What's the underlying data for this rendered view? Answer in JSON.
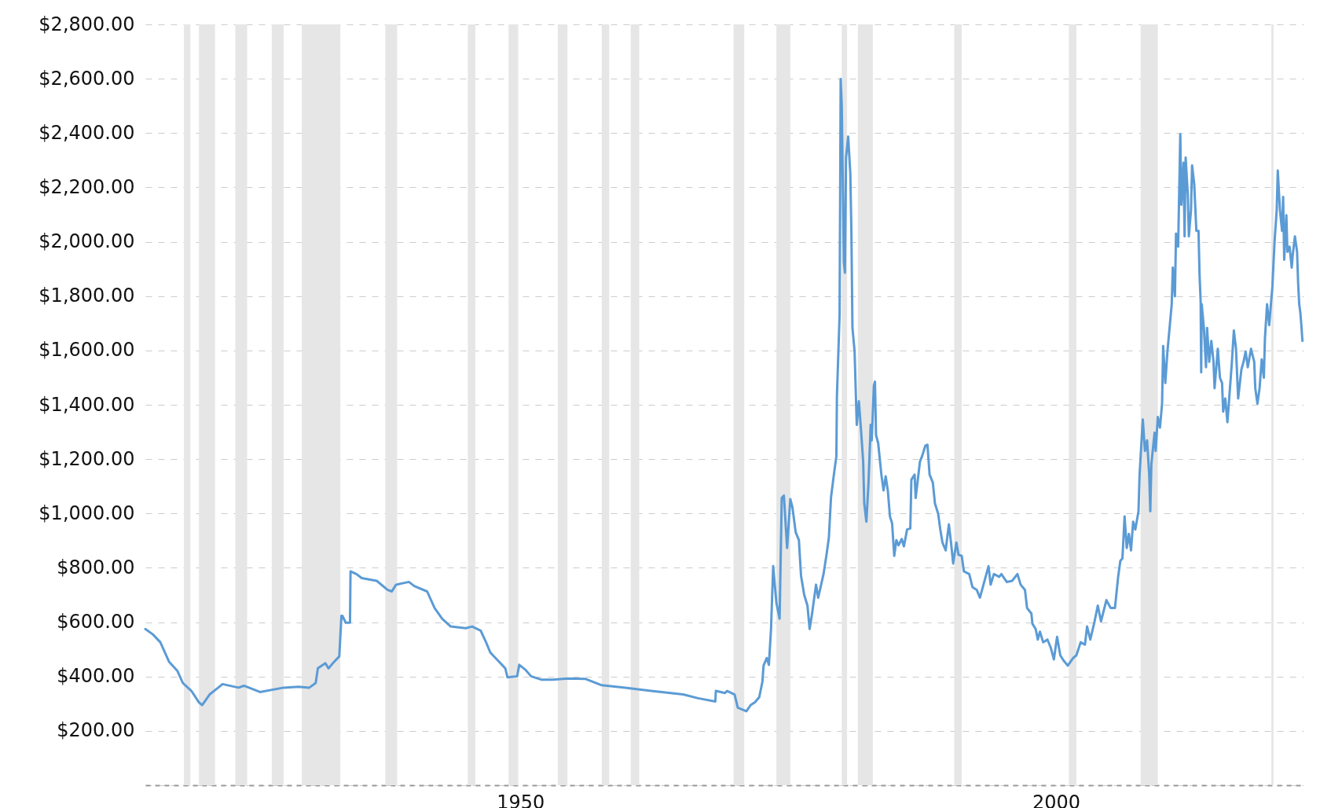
{
  "chart_data": {
    "type": "line",
    "x": [
      1915.0,
      1915.7,
      1916.4,
      1917.2,
      1918.0,
      1918.5,
      1919.3,
      1920.0,
      1920.3,
      1921.0,
      1921.8,
      1922.2,
      1923.7,
      1924.2,
      1925.7,
      1927.9,
      1929.3,
      1930.3,
      1930.9,
      1931.1,
      1931.8,
      1932.1,
      1932.5,
      1933.1,
      1933.3,
      1933.4,
      1933.7,
      1934.1,
      1934.15,
      1934.7,
      1935.2,
      1936.6,
      1937.6,
      1938.0,
      1938.4,
      1939.6,
      1940.1,
      1941.3,
      1942.0,
      1942.7,
      1943.5,
      1944.9,
      1945.5,
      1946.3,
      1946.8,
      1947.2,
      1947.9,
      1948.6,
      1948.8,
      1949.7,
      1949.9,
      1950.5,
      1951.0,
      1952.0,
      1953.0,
      1954.4,
      1956.1,
      1957.6,
      1959.8,
      1962.2,
      1965.2,
      1966.6,
      1968.2,
      1968.25,
      1969.1,
      1969.3,
      1970.0,
      1970.3,
      1971.1,
      1971.5,
      1971.9,
      1972.3,
      1972.6,
      1972.7,
      1973.0,
      1973.2,
      1973.4,
      1973.6,
      1973.9,
      1974.2,
      1974.4,
      1974.6,
      1974.9,
      1975.2,
      1975.4,
      1975.7,
      1976.0,
      1976.2,
      1976.5,
      1976.8,
      1977.0,
      1977.2,
      1977.6,
      1977.8,
      1978.3,
      1978.6,
      1978.8,
      1979.0,
      1979.3,
      1979.5,
      1979.55,
      1979.8,
      1979.9,
      1980.0,
      1980.2,
      1980.3,
      1980.4,
      1980.6,
      1980.8,
      1980.9,
      1981.0,
      1981.2,
      1981.4,
      1981.6,
      1981.8,
      1982.0,
      1982.1,
      1982.3,
      1982.5,
      1982.7,
      1982.8,
      1983.0,
      1983.1,
      1983.2,
      1983.4,
      1983.7,
      1983.9,
      1984.1,
      1984.3,
      1984.5,
      1984.7,
      1984.9,
      1985.1,
      1985.3,
      1985.6,
      1985.8,
      1986.1,
      1986.4,
      1986.5,
      1986.8,
      1986.9,
      1987.3,
      1987.5,
      1987.8,
      1988.0,
      1988.2,
      1988.5,
      1988.7,
      1989.0,
      1989.2,
      1989.4,
      1989.7,
      1990.0,
      1990.2,
      1990.4,
      1990.7,
      1990.9,
      1991.2,
      1991.4,
      1991.9,
      1992.2,
      1992.6,
      1992.9,
      1993.7,
      1993.9,
      1994.2,
      1994.7,
      1994.9,
      1995.4,
      1995.9,
      1996.4,
      1996.7,
      1997.1,
      1997.3,
      1997.7,
      1997.8,
      1998.1,
      1998.3,
      1998.5,
      1998.8,
      1999.2,
      1999.5,
      1999.8,
      2000.1,
      2000.4,
      2000.7,
      2001.1,
      2001.6,
      2001.9,
      2002.3,
      2002.7,
      2002.9,
      2003.2,
      2003.6,
      2003.9,
      2004.2,
      2004.7,
      2005.1,
      2005.5,
      2005.8,
      2006.0,
      2006.2,
      2006.4,
      2006.6,
      2006.8,
      2007.0,
      2007.2,
      2007.4,
      2007.7,
      2007.8,
      2008.1,
      2008.3,
      2008.5,
      2008.7,
      2008.8,
      2008.9,
      2009.2,
      2009.3,
      2009.5,
      2009.7,
      2009.9,
      2010.0,
      2010.2,
      2010.4,
      2010.6,
      2010.8,
      2010.9,
      2011.1,
      2011.2,
      2011.4,
      2011.6,
      2011.7,
      2011.9,
      2012.0,
      2012.1,
      2012.3,
      2012.4,
      2012.6,
      2012.7,
      2012.9,
      2013.1,
      2013.3,
      2013.4,
      2013.5,
      2013.55,
      2013.6,
      2013.8,
      2014.0,
      2014.1,
      2014.3,
      2014.5,
      2014.7,
      2014.8,
      2015.1,
      2015.3,
      2015.5,
      2015.6,
      2015.8,
      2016.0,
      2016.2,
      2016.4,
      2016.6,
      2016.8,
      2017.0,
      2017.3,
      2017.5,
      2017.7,
      2017.9,
      2018.2,
      2018.5,
      2018.6,
      2018.8,
      2019.0,
      2019.2,
      2019.4,
      2019.5,
      2019.7,
      2019.9,
      2020.2,
      2020.4,
      2020.6,
      2020.7,
      2020.9,
      2021.1,
      2021.2,
      2021.3,
      2021.5,
      2021.6,
      2021.8,
      2022.0,
      2022.1,
      2022.3,
      2022.5,
      2022.6,
      2022.7,
      2022.8,
      2022.9,
      2023.0
    ],
    "series": [
      {
        "color": "#5b9bd5",
        "values": [
          575,
          555,
          526,
          455,
          420,
          376,
          347,
          305,
          295,
          334,
          359,
          372,
          359,
          366,
          343,
          359,
          362,
          359,
          376,
          430,
          449,
          430,
          449,
          474,
          623,
          623,
          598,
          598,
          787,
          777,
          762,
          752,
          719,
          713,
          738,
          748,
          733,
          713,
          652,
          613,
          584,
          578,
          584,
          569,
          526,
          488,
          459,
          430,
          397,
          401,
          443,
          424,
          401,
          388,
          388,
          393,
          391,
          368,
          359,
          347,
          334,
          320,
          308,
          347,
          339,
          347,
          334,
          285,
          272,
          295,
          305,
          324,
          382,
          440,
          468,
          443,
          575,
          806,
          671,
          613,
          1057,
          1066,
          873,
          1053,
          1022,
          931,
          902,
          771,
          700,
          661,
          575,
          623,
          738,
          690,
          777,
          854,
          912,
          1060,
          1153,
          1211,
          1432,
          1731,
          2599,
          2503,
          1924,
          1886,
          2310,
          2387,
          2252,
          2040,
          1683,
          1596,
          1326,
          1413,
          1307,
          1191,
          1037,
          970,
          1114,
          1326,
          1269,
          1471,
          1485,
          1288,
          1259,
          1143,
          1085,
          1137,
          1085,
          989,
          964,
          844,
          902,
          883,
          906,
          879,
          941,
          945,
          1124,
          1143,
          1057,
          1191,
          1211,
          1249,
          1253,
          1143,
          1114,
          1037,
          999,
          941,
          893,
          864,
          960,
          893,
          816,
          893,
          848,
          844,
          787,
          777,
          729,
          719,
          690,
          806,
          738,
          777,
          767,
          777,
          748,
          752,
          777,
          738,
          719,
          652,
          632,
          594,
          575,
          536,
          565,
          526,
          536,
          507,
          463,
          546,
          478,
          459,
          440,
          468,
          478,
          526,
          517,
          584,
          536,
          603,
          661,
          603,
          681,
          652,
          652,
          767,
          825,
          835,
          989,
          873,
          925,
          864,
          970,
          941,
          1008,
          1143,
          1346,
          1230,
          1269,
          1143,
          1008,
          1182,
          1297,
          1230,
          1355,
          1316,
          1404,
          1616,
          1480,
          1596,
          1683,
          1770,
          1905,
          1799,
          2030,
          1982,
          2396,
          2136,
          2291,
          2020,
          2310,
          2175,
          2020,
          2117,
          2281,
          2213,
          2040,
          2040,
          1876,
          1780,
          1519,
          1770,
          1683,
          1538,
          1683,
          1558,
          1635,
          1558,
          1461,
          1606,
          1500,
          1480,
          1375,
          1423,
          1336,
          1442,
          1548,
          1673,
          1606,
          1423,
          1529,
          1558,
          1596,
          1538,
          1606,
          1558,
          1461,
          1404,
          1461,
          1567,
          1500,
          1644,
          1770,
          1693,
          1837,
          2001,
          2117,
          2262,
          2117,
          2040,
          2165,
          1934,
          2098,
          1963,
          1982,
          1905,
          1953,
          2020,
          1963,
          1847,
          1770,
          1741,
          1693,
          1635
        ]
      }
    ],
    "xlim": [
      1915,
      2023.1
    ],
    "xticks": [
      1950,
      2000
    ],
    "ylim": [
      0,
      2800
    ],
    "yticks": [
      {
        "value": 0,
        "label": null
      },
      {
        "value": 200,
        "label": "$200.00"
      },
      {
        "value": 400,
        "label": "$400.00"
      },
      {
        "value": 600,
        "label": "$600.00"
      },
      {
        "value": 800,
        "label": "$800.00"
      },
      {
        "value": 1000,
        "label": "$1,000.00"
      },
      {
        "value": 1200,
        "label": "$1,200.00"
      },
      {
        "value": 1400,
        "label": "$1,400.00"
      },
      {
        "value": 1600,
        "label": "$1,600.00"
      },
      {
        "value": 1800,
        "label": "$1,800.00"
      },
      {
        "value": 2000,
        "label": "$2,000.00"
      },
      {
        "value": 2200,
        "label": "$2,200.00"
      },
      {
        "value": 2400,
        "label": "$2,400.00"
      },
      {
        "value": 2600,
        "label": "$2,600.00"
      },
      {
        "value": 2800,
        "label": "$2,800.00"
      }
    ],
    "grid": "y",
    "bands": [
      {
        "axis": "x",
        "from": 1918.6,
        "to": 1919.2,
        "color": "#e6e6e6"
      },
      {
        "axis": "x",
        "from": 1920.0,
        "to": 1921.5,
        "color": "#e6e6e6"
      },
      {
        "axis": "x",
        "from": 1923.4,
        "to": 1924.5,
        "color": "#e6e6e6"
      },
      {
        "axis": "x",
        "from": 1926.8,
        "to": 1927.9,
        "color": "#e6e6e6"
      },
      {
        "axis": "x",
        "from": 1929.6,
        "to": 1933.2,
        "color": "#e6e6e6"
      },
      {
        "axis": "x",
        "from": 1937.4,
        "to": 1938.5,
        "color": "#e6e6e6"
      },
      {
        "axis": "x",
        "from": 1945.1,
        "to": 1945.8,
        "color": "#e6e6e6"
      },
      {
        "axis": "x",
        "from": 1948.9,
        "to": 1949.8,
        "color": "#e6e6e6"
      },
      {
        "axis": "x",
        "from": 1953.5,
        "to": 1954.4,
        "color": "#e6e6e6"
      },
      {
        "axis": "x",
        "from": 1957.6,
        "to": 1958.3,
        "color": "#e6e6e6"
      },
      {
        "axis": "x",
        "from": 1960.3,
        "to": 1961.1,
        "color": "#e6e6e6"
      },
      {
        "axis": "x",
        "from": 1969.9,
        "to": 1970.9,
        "color": "#e6e6e6"
      },
      {
        "axis": "x",
        "from": 1973.9,
        "to": 1975.2,
        "color": "#e6e6e6"
      },
      {
        "axis": "x",
        "from": 1980.0,
        "to": 1980.5,
        "color": "#e6e6e6"
      },
      {
        "axis": "x",
        "from": 1981.5,
        "to": 1982.9,
        "color": "#e6e6e6"
      },
      {
        "axis": "x",
        "from": 1990.5,
        "to": 1991.2,
        "color": "#e6e6e6"
      },
      {
        "axis": "x",
        "from": 2001.2,
        "to": 2001.9,
        "color": "#e6e6e6"
      },
      {
        "axis": "x",
        "from": 2007.9,
        "to": 2009.5,
        "color": "#e6e6e6"
      },
      {
        "axis": "x",
        "from": 2020.1,
        "to": 2020.3,
        "color": "#e6e6e6"
      }
    ]
  }
}
